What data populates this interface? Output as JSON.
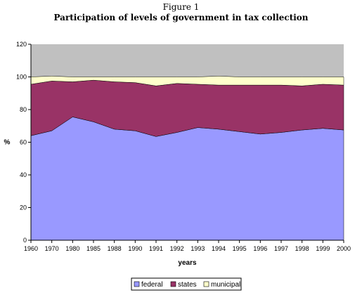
{
  "figure_caption": "Figure 1",
  "chart_data": {
    "type": "area",
    "stacked": true,
    "title": "Participation of levels of government in  tax collection",
    "xlabel": "years",
    "ylabel": "%",
    "ylim": [
      0,
      120
    ],
    "yticks": [
      0,
      20,
      40,
      60,
      80,
      100,
      120
    ],
    "grid": false,
    "legend_position": "bottom",
    "categories": [
      "1960",
      "1970",
      "1980",
      "1985",
      "1988",
      "1990",
      "1991",
      "1992",
      "1993",
      "1994",
      "1995",
      "1996",
      "1997",
      "1998",
      "1999",
      "2000"
    ],
    "series": [
      {
        "name": "federal",
        "color": "#9999ff",
        "values": [
          64,
          67,
          75.5,
          72.5,
          68,
          67,
          63.5,
          66,
          69,
          68,
          66.5,
          65,
          66,
          67.5,
          68.5,
          67.5
        ]
      },
      {
        "name": "states",
        "color": "#993366",
        "values": [
          31.5,
          30.5,
          21.5,
          25.5,
          29,
          29.5,
          31,
          30,
          26.5,
          27,
          28.5,
          30,
          29,
          27,
          27,
          27.5
        ]
      },
      {
        "name": "municipal",
        "color": "#ffffcc",
        "values": [
          4.5,
          3,
          3,
          2,
          3,
          3.5,
          5.5,
          4,
          4.5,
          5.5,
          5,
          5,
          5,
          5.5,
          4.5,
          5
        ]
      }
    ],
    "background_band": {
      "range": [
        100,
        120
      ],
      "color": "#c0c0c0"
    }
  }
}
